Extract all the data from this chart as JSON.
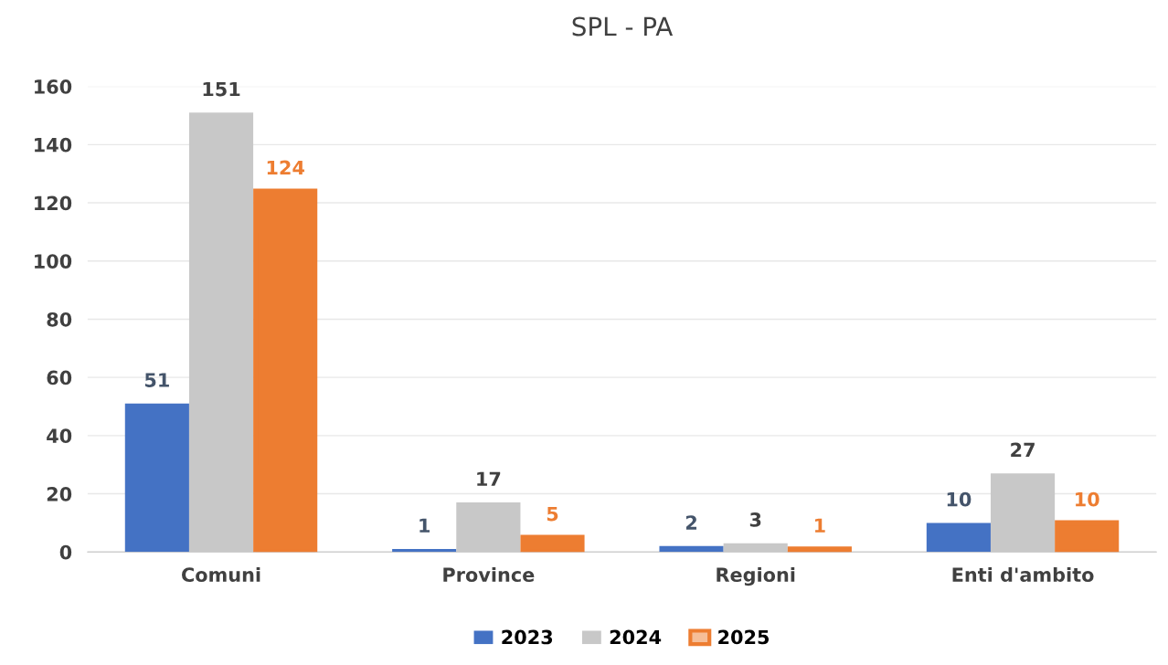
{
  "chart_data": {
    "type": "bar",
    "title": "SPL - PA",
    "categories": [
      "Comuni",
      "Province",
      "Regioni",
      "Enti d'ambito"
    ],
    "series": [
      {
        "name": "2023",
        "color": "#4472c4",
        "values": [
          51,
          1,
          2,
          10
        ]
      },
      {
        "name": "2024",
        "color": "#c8c8c8",
        "values": [
          151,
          17,
          3,
          27
        ]
      },
      {
        "name": "2025",
        "color": "#ed7d31",
        "values": [
          124,
          5,
          1,
          10
        ]
      }
    ],
    "ylim": [
      0,
      160
    ],
    "yticks": [
      0,
      20,
      40,
      60,
      80,
      100,
      120,
      140,
      160
    ],
    "grid": "y",
    "legend": "bottom",
    "data_labels": true
  }
}
